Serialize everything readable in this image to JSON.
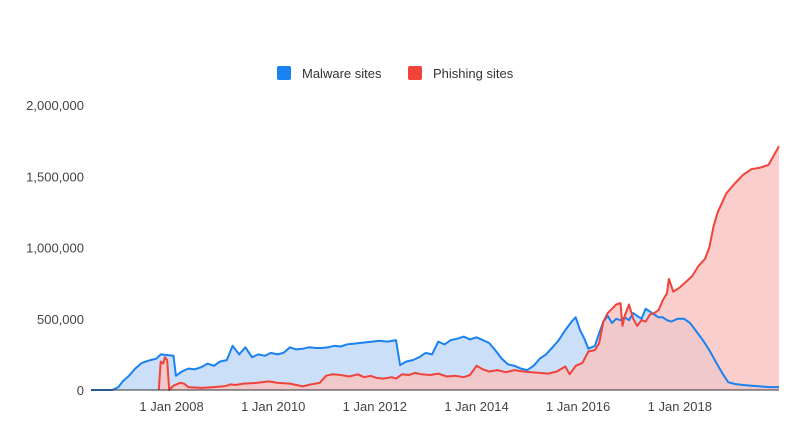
{
  "chart_data": {
    "type": "area",
    "title": "",
    "xlabel": "",
    "ylabel": "",
    "xlim": [
      "2006-06-01",
      "2019-12-15"
    ],
    "ylim": [
      0,
      2000000
    ],
    "grid": false,
    "legend_position": "top",
    "y_ticks": [
      {
        "value": 0,
        "label": "0"
      },
      {
        "value": 500000,
        "label": "500,000"
      },
      {
        "value": 1000000,
        "label": "1,000,000"
      },
      {
        "value": 1500000,
        "label": "1,500,000"
      },
      {
        "value": 2000000,
        "label": "2,000,000"
      }
    ],
    "x_ticks": [
      {
        "value": "2008-01-01",
        "label": "1 Jan 2008"
      },
      {
        "value": "2010-01-01",
        "label": "1 Jan 2010"
      },
      {
        "value": "2012-01-01",
        "label": "1 Jan 2012"
      },
      {
        "value": "2014-01-01",
        "label": "1 Jan 2014"
      },
      {
        "value": "2016-01-01",
        "label": "1 Jan 2016"
      },
      {
        "value": "2018-01-01",
        "label": "1 Jan 2018"
      }
    ],
    "series": [
      {
        "name": "Malware sites",
        "color": "#1a82f0",
        "fill": "#c2d9f7",
        "points": [
          [
            "2006-06-01",
            0
          ],
          [
            "2006-11-01",
            0
          ],
          [
            "2006-12-15",
            20000
          ],
          [
            "2007-01-15",
            60000
          ],
          [
            "2007-03-01",
            100000
          ],
          [
            "2007-04-15",
            150000
          ],
          [
            "2007-06-01",
            190000
          ],
          [
            "2007-08-01",
            210000
          ],
          [
            "2007-09-15",
            220000
          ],
          [
            "2007-10-15",
            250000
          ],
          [
            "2007-12-01",
            245000
          ],
          [
            "2008-01-15",
            240000
          ],
          [
            "2008-02-01",
            100000
          ],
          [
            "2008-03-15",
            130000
          ],
          [
            "2008-05-01",
            150000
          ],
          [
            "2008-06-15",
            145000
          ],
          [
            "2008-08-01",
            160000
          ],
          [
            "2008-09-15",
            185000
          ],
          [
            "2008-11-01",
            170000
          ],
          [
            "2008-12-15",
            200000
          ],
          [
            "2009-02-01",
            210000
          ],
          [
            "2009-03-15",
            310000
          ],
          [
            "2009-05-01",
            250000
          ],
          [
            "2009-06-15",
            300000
          ],
          [
            "2009-08-01",
            230000
          ],
          [
            "2009-09-15",
            250000
          ],
          [
            "2009-11-01",
            240000
          ],
          [
            "2009-12-15",
            260000
          ],
          [
            "2010-02-01",
            250000
          ],
          [
            "2010-03-15",
            260000
          ],
          [
            "2010-05-01",
            300000
          ],
          [
            "2010-06-15",
            285000
          ],
          [
            "2010-08-01",
            290000
          ],
          [
            "2010-09-15",
            300000
          ],
          [
            "2010-11-01",
            295000
          ],
          [
            "2010-12-15",
            295000
          ],
          [
            "2011-02-01",
            300000
          ],
          [
            "2011-03-15",
            310000
          ],
          [
            "2011-05-01",
            305000
          ],
          [
            "2011-06-15",
            320000
          ],
          [
            "2011-08-01",
            325000
          ],
          [
            "2011-09-15",
            330000
          ],
          [
            "2011-11-01",
            335000
          ],
          [
            "2011-12-15",
            340000
          ],
          [
            "2012-02-01",
            345000
          ],
          [
            "2012-04-01",
            340000
          ],
          [
            "2012-06-01",
            350000
          ],
          [
            "2012-07-01",
            175000
          ],
          [
            "2012-08-15",
            200000
          ],
          [
            "2012-10-01",
            210000
          ],
          [
            "2012-11-15",
            230000
          ],
          [
            "2013-01-01",
            260000
          ],
          [
            "2013-02-15",
            250000
          ],
          [
            "2013-04-01",
            340000
          ],
          [
            "2013-05-15",
            320000
          ],
          [
            "2013-07-01",
            350000
          ],
          [
            "2013-08-15",
            360000
          ],
          [
            "2013-10-01",
            375000
          ],
          [
            "2013-11-15",
            355000
          ],
          [
            "2014-01-01",
            370000
          ],
          [
            "2014-02-15",
            350000
          ],
          [
            "2014-04-01",
            330000
          ],
          [
            "2014-05-15",
            280000
          ],
          [
            "2014-07-01",
            220000
          ],
          [
            "2014-08-15",
            180000
          ],
          [
            "2014-10-01",
            170000
          ],
          [
            "2014-11-15",
            150000
          ],
          [
            "2015-01-01",
            140000
          ],
          [
            "2015-02-15",
            170000
          ],
          [
            "2015-04-01",
            220000
          ],
          [
            "2015-05-15",
            250000
          ],
          [
            "2015-07-01",
            300000
          ],
          [
            "2015-08-15",
            350000
          ],
          [
            "2015-10-01",
            420000
          ],
          [
            "2015-11-15",
            480000
          ],
          [
            "2015-12-15",
            510000
          ],
          [
            "2016-01-15",
            420000
          ],
          [
            "2016-02-15",
            360000
          ],
          [
            "2016-03-15",
            290000
          ],
          [
            "2016-05-01",
            310000
          ],
          [
            "2016-06-01",
            400000
          ],
          [
            "2016-07-01",
            480000
          ],
          [
            "2016-08-01",
            520000
          ],
          [
            "2016-09-01",
            470000
          ],
          [
            "2016-10-01",
            500000
          ],
          [
            "2016-11-01",
            490000
          ],
          [
            "2016-12-01",
            510000
          ],
          [
            "2017-01-01",
            490000
          ],
          [
            "2017-02-01",
            540000
          ],
          [
            "2017-03-01",
            520000
          ],
          [
            "2017-04-01",
            500000
          ],
          [
            "2017-05-01",
            570000
          ],
          [
            "2017-06-01",
            550000
          ],
          [
            "2017-07-01",
            530000
          ],
          [
            "2017-08-01",
            510000
          ],
          [
            "2017-09-01",
            510000
          ],
          [
            "2017-10-01",
            490000
          ],
          [
            "2017-11-01",
            480000
          ],
          [
            "2017-12-15",
            500000
          ],
          [
            "2018-02-01",
            500000
          ],
          [
            "2018-03-15",
            470000
          ],
          [
            "2018-05-01",
            410000
          ],
          [
            "2018-06-15",
            350000
          ],
          [
            "2018-08-01",
            280000
          ],
          [
            "2018-09-15",
            200000
          ],
          [
            "2018-11-01",
            120000
          ],
          [
            "2018-12-15",
            55000
          ],
          [
            "2019-02-01",
            42000
          ],
          [
            "2019-04-01",
            35000
          ],
          [
            "2019-06-01",
            30000
          ],
          [
            "2019-08-01",
            25000
          ],
          [
            "2019-10-01",
            20000
          ],
          [
            "2019-12-15",
            20000
          ]
        ]
      },
      {
        "name": "Phishing sites",
        "color": "#f0433a",
        "fill": "#f9c5c3",
        "points": [
          [
            "2007-10-01",
            0
          ],
          [
            "2007-10-15",
            200000
          ],
          [
            "2007-11-01",
            185000
          ],
          [
            "2007-11-15",
            230000
          ],
          [
            "2007-12-01",
            210000
          ],
          [
            "2007-12-15",
            0
          ],
          [
            "2008-01-15",
            30000
          ],
          [
            "2008-03-01",
            50000
          ],
          [
            "2008-04-01",
            45000
          ],
          [
            "2008-05-01",
            20000
          ],
          [
            "2008-08-01",
            15000
          ],
          [
            "2008-11-01",
            20000
          ],
          [
            "2009-01-01",
            25000
          ],
          [
            "2009-02-01",
            30000
          ],
          [
            "2009-03-01",
            40000
          ],
          [
            "2009-04-01",
            35000
          ],
          [
            "2009-06-01",
            45000
          ],
          [
            "2009-09-01",
            50000
          ],
          [
            "2009-12-01",
            60000
          ],
          [
            "2010-02-01",
            50000
          ],
          [
            "2010-05-01",
            45000
          ],
          [
            "2010-08-01",
            25000
          ],
          [
            "2010-10-01",
            40000
          ],
          [
            "2010-12-01",
            50000
          ],
          [
            "2011-01-15",
            100000
          ],
          [
            "2011-03-01",
            110000
          ],
          [
            "2011-05-01",
            105000
          ],
          [
            "2011-07-01",
            95000
          ],
          [
            "2011-09-01",
            110000
          ],
          [
            "2011-10-15",
            90000
          ],
          [
            "2011-12-01",
            100000
          ],
          [
            "2012-01-15",
            85000
          ],
          [
            "2012-03-01",
            80000
          ],
          [
            "2012-05-01",
            90000
          ],
          [
            "2012-06-01",
            80000
          ],
          [
            "2012-07-15",
            110000
          ],
          [
            "2012-09-01",
            105000
          ],
          [
            "2012-10-15",
            120000
          ],
          [
            "2012-12-01",
            110000
          ],
          [
            "2013-02-01",
            105000
          ],
          [
            "2013-04-01",
            115000
          ],
          [
            "2013-06-01",
            95000
          ],
          [
            "2013-08-01",
            100000
          ],
          [
            "2013-10-01",
            90000
          ],
          [
            "2013-11-15",
            105000
          ],
          [
            "2014-01-01",
            170000
          ],
          [
            "2014-02-15",
            145000
          ],
          [
            "2014-04-01",
            130000
          ],
          [
            "2014-06-01",
            140000
          ],
          [
            "2014-08-01",
            125000
          ],
          [
            "2014-10-01",
            140000
          ],
          [
            "2014-12-01",
            130000
          ],
          [
            "2015-02-01",
            125000
          ],
          [
            "2015-04-01",
            120000
          ],
          [
            "2015-06-01",
            115000
          ],
          [
            "2015-08-01",
            130000
          ],
          [
            "2015-10-01",
            165000
          ],
          [
            "2015-11-01",
            110000
          ],
          [
            "2015-12-15",
            170000
          ],
          [
            "2016-02-01",
            190000
          ],
          [
            "2016-03-15",
            270000
          ],
          [
            "2016-05-01",
            280000
          ],
          [
            "2016-06-01",
            330000
          ],
          [
            "2016-07-01",
            480000
          ],
          [
            "2016-08-01",
            540000
          ],
          [
            "2016-09-01",
            570000
          ],
          [
            "2016-10-01",
            600000
          ],
          [
            "2016-11-01",
            610000
          ],
          [
            "2016-11-15",
            450000
          ],
          [
            "2016-12-01",
            520000
          ],
          [
            "2017-01-01",
            600000
          ],
          [
            "2017-02-01",
            500000
          ],
          [
            "2017-03-01",
            450000
          ],
          [
            "2017-04-01",
            490000
          ],
          [
            "2017-05-01",
            480000
          ],
          [
            "2017-06-01",
            530000
          ],
          [
            "2017-07-01",
            540000
          ],
          [
            "2017-08-01",
            560000
          ],
          [
            "2017-09-01",
            630000
          ],
          [
            "2017-10-01",
            680000
          ],
          [
            "2017-10-15",
            780000
          ],
          [
            "2017-11-15",
            690000
          ],
          [
            "2018-01-01",
            720000
          ],
          [
            "2018-02-15",
            760000
          ],
          [
            "2018-04-01",
            800000
          ],
          [
            "2018-05-15",
            870000
          ],
          [
            "2018-07-01",
            920000
          ],
          [
            "2018-08-01",
            1000000
          ],
          [
            "2018-09-01",
            1150000
          ],
          [
            "2018-10-01",
            1250000
          ],
          [
            "2018-12-01",
            1380000
          ],
          [
            "2019-02-01",
            1450000
          ],
          [
            "2019-04-01",
            1510000
          ],
          [
            "2019-06-01",
            1550000
          ],
          [
            "2019-08-01",
            1560000
          ],
          [
            "2019-10-01",
            1580000
          ],
          [
            "2019-12-15",
            1710000
          ]
        ]
      }
    ]
  }
}
